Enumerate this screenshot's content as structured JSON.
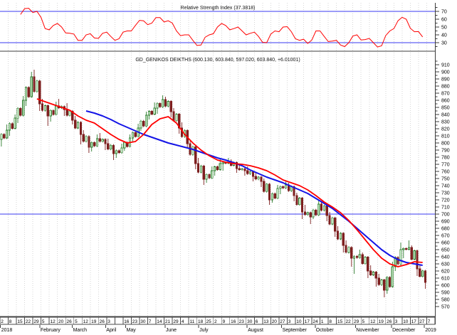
{
  "colors": {
    "rsi_line": "#ff0000",
    "ref_line": "#7b7bf5",
    "ma_fast": "#ff0000",
    "ma_slow": "#1414e6",
    "up_border": "#2f7d2f",
    "up_fill": "#bfe3bf",
    "down": "#7e1f1f",
    "grid": "#d6d6d6",
    "text": "#000000"
  },
  "chart_data": {
    "type": "candlestick",
    "title": "GD_GENIKOS DEIKTHS (600.130, 603.840, 597.020, 603.840, +6.01001)",
    "last_quote": {
      "open": 600.13,
      "high": 603.84,
      "low": 597.02,
      "close": 603.84,
      "change": "+6.01001"
    },
    "x_axis": {
      "year_start": "2018",
      "year_end": "2019",
      "week_labels": [
        "2",
        "8",
        "15",
        "22",
        "29",
        "5",
        "12",
        "20",
        "26",
        "5",
        "12",
        "19",
        "26",
        "3",
        "",
        "16",
        "23",
        "30",
        "7",
        "14",
        "21",
        "29",
        "4",
        "11",
        "18",
        "25",
        "2",
        "9",
        "16",
        "23",
        "30",
        "6",
        "13",
        "20",
        "27",
        "3",
        "10",
        "17",
        "24",
        "1",
        "8",
        "15",
        "22",
        "29",
        "5",
        "12",
        "19",
        "26",
        "3",
        "10",
        "17",
        "27",
        "7"
      ],
      "months": [
        {
          "label": "2018",
          "week": 0.15
        },
        {
          "label": "February",
          "week": 4.94
        },
        {
          "label": "March",
          "week": 8.9
        },
        {
          "label": "April",
          "week": 12.95
        },
        {
          "label": "May",
          "week": 15.4
        },
        {
          "label": "June",
          "week": 20.2
        },
        {
          "label": "July",
          "week": 24.3
        },
        {
          "label": "August",
          "week": 30.2
        },
        {
          "label": "September",
          "week": 34.4
        },
        {
          "label": "October",
          "week": 38.5
        },
        {
          "label": "November",
          "week": 43.4
        },
        {
          "label": "December",
          "week": 47.8
        },
        {
          "label": "2019",
          "week": 51.8
        }
      ]
    },
    "panels": [
      {
        "type": "line",
        "title": "Relative Strength Index (37.3818)",
        "last_value": 37.3818,
        "ref_lines": [
          70,
          30
        ],
        "axis_ticks": [
          70,
          60,
          50,
          40,
          30
        ],
        "ylim": [
          20,
          80
        ],
        "series": [
          {
            "name": "RSI",
            "values": [
              null,
              null,
              66,
              74,
              70,
              48,
              52,
              50,
              42,
              33,
              40,
              36,
              42,
              38,
              35,
              45,
              52,
              58,
              55,
              62,
              58,
              45,
              40,
              33,
              27,
              40,
              50,
              52,
              48,
              45,
              42,
              38,
              30,
              45,
              50,
              44,
              33,
              29,
              45,
              38,
              32,
              27,
              30,
              40,
              34,
              30,
              26,
              45,
              58,
              60,
              44,
              37.4
            ]
          }
        ]
      },
      {
        "type": "candlestick",
        "title": "GD_GENIKOS DEIKTHS (600.130, 603.840, 597.020, 603.840, +6.01001)",
        "ref_lines": [
          700
        ],
        "axis": {
          "min": 570,
          "max": 910,
          "step": 10
        },
        "ylim": [
          556,
          927
        ],
        "candles": [
          [
            805,
            826,
            795,
            818
          ],
          [
            818,
            840,
            810,
            835
          ],
          [
            835,
            866,
            828,
            860
          ],
          [
            860,
            900,
            852,
            893
          ],
          [
            893,
            903,
            845,
            855
          ],
          [
            855,
            862,
            824,
            838
          ],
          [
            838,
            858,
            830,
            852
          ],
          [
            852,
            862,
            838,
            847
          ],
          [
            847,
            856,
            826,
            832
          ],
          [
            832,
            838,
            798,
            812
          ],
          [
            812,
            818,
            786,
            794
          ],
          [
            794,
            812,
            788,
            806
          ],
          [
            806,
            814,
            790,
            799
          ],
          [
            799,
            806,
            776,
            785
          ],
          [
            785,
            799,
            779,
            793
          ],
          [
            793,
            812,
            789,
            807
          ],
          [
            807,
            827,
            801,
            821
          ],
          [
            821,
            844,
            817,
            839
          ],
          [
            839,
            857,
            833,
            849
          ],
          [
            849,
            867,
            841,
            861
          ],
          [
            861,
            865,
            836,
            844
          ],
          [
            844,
            849,
            813,
            821
          ],
          [
            821,
            829,
            793,
            799
          ],
          [
            799,
            804,
            763,
            771
          ],
          [
            771,
            779,
            741,
            749
          ],
          [
            749,
            767,
            744,
            761
          ],
          [
            761,
            777,
            754,
            771
          ],
          [
            771,
            779,
            761,
            774
          ],
          [
            774,
            777,
            758,
            764
          ],
          [
            764,
            771,
            754,
            761
          ],
          [
            761,
            767,
            746,
            753
          ],
          [
            753,
            758,
            738,
            746
          ],
          [
            746,
            750,
            713,
            720
          ],
          [
            720,
            741,
            716,
            736
          ],
          [
            736,
            747,
            728,
            741
          ],
          [
            741,
            744,
            718,
            726
          ],
          [
            726,
            730,
            693,
            703
          ],
          [
            703,
            713,
            686,
            696
          ],
          [
            696,
            720,
            693,
            714
          ],
          [
            714,
            717,
            690,
            698
          ],
          [
            698,
            703,
            668,
            676
          ],
          [
            676,
            683,
            646,
            656
          ],
          [
            656,
            663,
            626,
            638
          ],
          [
            638,
            650,
            616,
            643
          ],
          [
            643,
            646,
            610,
            620
          ],
          [
            620,
            628,
            598,
            610
          ],
          [
            610,
            616,
            583,
            593
          ],
          [
            593,
            633,
            588,
            626
          ],
          [
            626,
            660,
            620,
            650
          ],
          [
            650,
            663,
            638,
            653
          ],
          [
            653,
            656,
            613,
            623
          ],
          [
            623,
            628,
            595,
            603.84
          ]
        ],
        "overlays": [
          {
            "name": "moving-average-fast-red",
            "values": [
              null,
              null,
              null,
              null,
              862,
              858,
              854,
              850,
              846,
              838,
              832,
              828,
              820,
              812,
              805,
              800,
              802,
              812,
              826,
              834,
              837,
              828,
              812,
              800,
              790,
              782,
              776,
              773,
              771,
              770,
              768,
              765,
              761,
              755,
              748,
              744,
              740,
              734,
              726,
              717,
              710,
              702,
              691,
              678,
              664,
              650,
              638,
              630,
              626,
              629,
              633,
              632
            ]
          },
          {
            "name": "moving-average-slow-blue",
            "values": [
              null,
              null,
              null,
              null,
              null,
              null,
              null,
              null,
              null,
              null,
              845,
              842,
              838,
              833,
              827,
              822,
              817,
              812,
              808,
              804,
              800,
              797,
              794,
              791,
              787,
              783,
              779,
              776,
              772,
              768,
              762,
              757,
              752,
              748,
              744,
              739,
              734,
              729,
              722,
              715,
              708,
              699,
              690,
              680,
              670,
              660,
              650,
              642,
              636,
              632,
              630,
              628
            ]
          }
        ]
      }
    ]
  }
}
